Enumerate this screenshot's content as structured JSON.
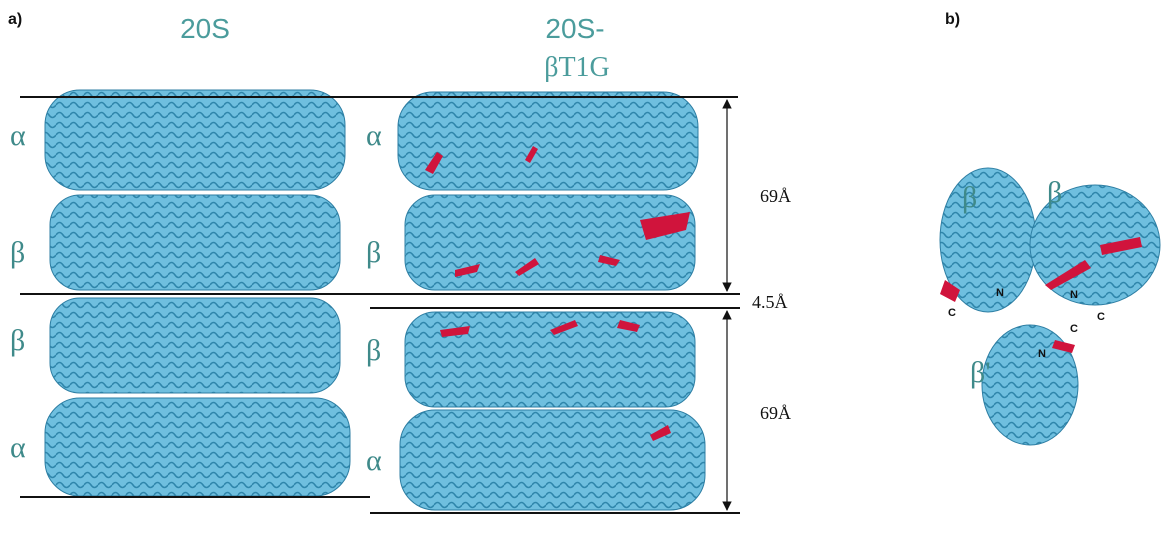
{
  "panel_a": {
    "label": "a)",
    "headings": [
      "20S",
      "20S-",
      "βT1G"
    ],
    "left_layers": [
      "α",
      "β",
      "β",
      "α"
    ],
    "right_layers": [
      "α",
      "β",
      "β",
      "α"
    ],
    "distances": [
      "69Å",
      "4.5Å",
      "69Å"
    ]
  },
  "panel_b": {
    "label": "b)",
    "subunits": [
      "β",
      "β",
      "β'"
    ],
    "termini": [
      "N",
      "C",
      "N",
      "C",
      "C",
      "N"
    ]
  }
}
